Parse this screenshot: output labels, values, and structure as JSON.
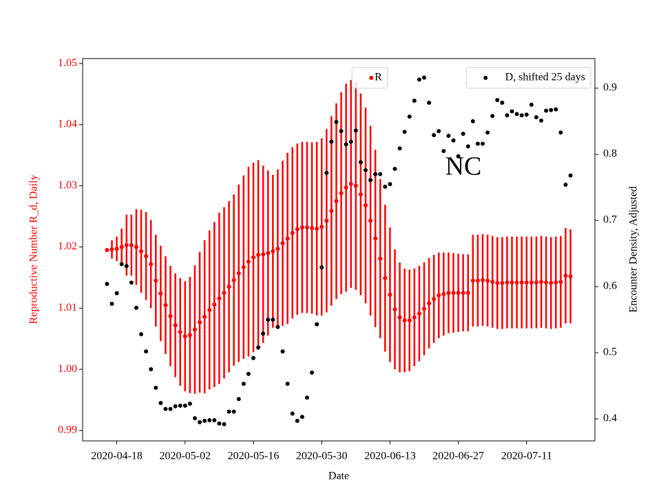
{
  "chart_data": {
    "type": "scatter",
    "xlabel": "Date",
    "ylabel": "Reproductive Number R_d, Daily",
    "y2label": "Encounter Density, Adjusted",
    "annotation": "NC",
    "xlim": [
      "2020-04-11",
      "2020-07-25"
    ],
    "xticks": [
      "2020-04-18",
      "2020-05-02",
      "2020-05-16",
      "2020-05-30",
      "2020-06-13",
      "2020-06-27",
      "2020-07-11"
    ],
    "ylim": [
      0.9883,
      1.0508
    ],
    "yticks": [
      0.99,
      {
        "value": 1,
        "label": "1.00"
      },
      1.01,
      1.02,
      1.03,
      1.04,
      1.05
    ],
    "y2lim": [
      0.3667,
      0.9448
    ],
    "y2ticks": [
      0.4,
      0.5,
      0.6,
      0.7,
      0.8,
      0.9
    ],
    "ylabel_color": "#ff0000",
    "x": [
      "2020-04-16",
      "2020-04-17",
      "2020-04-18",
      "2020-04-19",
      "2020-04-20",
      "2020-04-21",
      "2020-04-22",
      "2020-04-23",
      "2020-04-24",
      "2020-04-25",
      "2020-04-26",
      "2020-04-27",
      "2020-04-28",
      "2020-04-29",
      "2020-04-30",
      "2020-05-01",
      "2020-05-02",
      "2020-05-03",
      "2020-05-04",
      "2020-05-05",
      "2020-05-06",
      "2020-05-07",
      "2020-05-08",
      "2020-05-09",
      "2020-05-10",
      "2020-05-11",
      "2020-05-12",
      "2020-05-13",
      "2020-05-14",
      "2020-05-15",
      "2020-05-16",
      "2020-05-17",
      "2020-05-18",
      "2020-05-19",
      "2020-05-20",
      "2020-05-21",
      "2020-05-22",
      "2020-05-23",
      "2020-05-24",
      "2020-05-25",
      "2020-05-26",
      "2020-05-27",
      "2020-05-28",
      "2020-05-29",
      "2020-05-30",
      "2020-05-31",
      "2020-06-01",
      "2020-06-02",
      "2020-06-03",
      "2020-06-04",
      "2020-06-05",
      "2020-06-06",
      "2020-06-07",
      "2020-06-08",
      "2020-06-09",
      "2020-06-10",
      "2020-06-11",
      "2020-06-12",
      "2020-06-13",
      "2020-06-14",
      "2020-06-15",
      "2020-06-16",
      "2020-06-17",
      "2020-06-18",
      "2020-06-19",
      "2020-06-20",
      "2020-06-21",
      "2020-06-22",
      "2020-06-23",
      "2020-06-24",
      "2020-06-25",
      "2020-06-26",
      "2020-06-27",
      "2020-06-28",
      "2020-06-29",
      "2020-06-30",
      "2020-07-01",
      "2020-07-02",
      "2020-07-03",
      "2020-07-04",
      "2020-07-05",
      "2020-07-06",
      "2020-07-07",
      "2020-07-08",
      "2020-07-09",
      "2020-07-10",
      "2020-07-11",
      "2020-07-12",
      "2020-07-13",
      "2020-07-14",
      "2020-07-15",
      "2020-07-16",
      "2020-07-17",
      "2020-07-18",
      "2020-07-19",
      "2020-07-20"
    ],
    "series": [
      {
        "name": "R",
        "color": "#ff0000",
        "axis": "y",
        "legend": "upper center",
        "values": [
          1.0195,
          1.0196,
          1.0197,
          1.02,
          1.0203,
          1.0203,
          1.02,
          1.0193,
          1.0185,
          1.0172,
          1.0145,
          1.0124,
          1.0105,
          1.0087,
          1.0072,
          1.0061,
          1.0054,
          1.0056,
          1.0065,
          1.0077,
          1.0086,
          1.0097,
          1.0106,
          1.0116,
          1.0125,
          1.0135,
          1.0146,
          1.0157,
          1.0167,
          1.0176,
          1.0183,
          1.0187,
          1.0188,
          1.019,
          1.0193,
          1.0197,
          1.0206,
          1.0214,
          1.0223,
          1.0229,
          1.0232,
          1.0232,
          1.0231,
          1.023,
          1.0233,
          1.0243,
          1.0259,
          1.0275,
          1.0288,
          1.0297,
          1.0303,
          1.03,
          1.0286,
          1.0268,
          1.0243,
          1.0214,
          1.0181,
          1.0149,
          1.0122,
          1.0098,
          1.0085,
          1.008,
          1.008,
          1.0085,
          1.0091,
          1.0099,
          1.0108,
          1.0115,
          1.0121,
          1.0123,
          1.0125,
          1.0125,
          1.0125,
          1.0125,
          1.0125,
          1.0145,
          1.0145,
          1.0146,
          1.0145,
          1.0143,
          1.0141,
          1.0141,
          1.0142,
          1.0142,
          1.0142,
          1.0142,
          1.0142,
          1.0142,
          1.0142,
          1.0143,
          1.0142,
          1.0141,
          1.0142,
          1.0143,
          1.0153,
          1.0152
        ],
        "errors": [
          0.0003,
          0.0015,
          0.002,
          0.003,
          0.005,
          0.005,
          0.0062,
          0.0068,
          0.0072,
          0.0072,
          0.0075,
          0.0078,
          0.008,
          0.0082,
          0.0085,
          0.0088,
          0.009,
          0.0095,
          0.0105,
          0.0115,
          0.0125,
          0.013,
          0.0135,
          0.014,
          0.014,
          0.014,
          0.014,
          0.0145,
          0.015,
          0.0155,
          0.0155,
          0.0155,
          0.0145,
          0.0135,
          0.0125,
          0.013,
          0.0135,
          0.014,
          0.014,
          0.014,
          0.014,
          0.014,
          0.014,
          0.0142,
          0.0145,
          0.015,
          0.0155,
          0.016,
          0.0165,
          0.017,
          0.017,
          0.017,
          0.0165,
          0.016,
          0.0155,
          0.0145,
          0.013,
          0.012,
          0.011,
          0.0098,
          0.009,
          0.0085,
          0.0083,
          0.008,
          0.0078,
          0.0076,
          0.0074,
          0.0072,
          0.007,
          0.0068,
          0.0066,
          0.0065,
          0.0064,
          0.0063,
          0.0063,
          0.0075,
          0.0075,
          0.0075,
          0.0075,
          0.0075,
          0.0075,
          0.0075,
          0.0075,
          0.0075,
          0.0075,
          0.0075,
          0.0075,
          0.0075,
          0.0075,
          0.0075,
          0.0075,
          0.0075,
          0.0075,
          0.0075,
          0.0078,
          0.0077
        ]
      },
      {
        "name": "D, shifted 25 days",
        "color": "#000000",
        "axis": "y2",
        "legend": "upper right",
        "values": [
          0.604,
          0.574,
          0.59,
          0.634,
          0.631,
          0.606,
          0.568,
          0.528,
          0.502,
          0.475,
          0.447,
          0.424,
          0.415,
          0.415,
          0.419,
          0.42,
          0.42,
          0.423,
          0.401,
          0.395,
          0.397,
          0.398,
          0.398,
          0.393,
          0.392,
          0.411,
          0.411,
          0.43,
          0.453,
          0.468,
          0.492,
          0.508,
          0.529,
          0.55,
          0.55,
          0.539,
          0.502,
          0.453,
          0.408,
          0.397,
          0.403,
          0.432,
          0.47,
          0.543,
          0.629,
          0.772,
          0.819,
          0.849,
          0.835,
          0.815,
          0.819,
          0.836,
          0.788,
          0.776,
          0.761,
          0.77,
          0.77,
          0.751,
          0.755,
          0.778,
          0.809,
          0.834,
          0.857,
          0.881,
          0.913,
          0.916,
          0.878,
          0.829,
          0.835,
          0.805,
          0.828,
          0.821,
          0.797,
          0.831,
          0.812,
          0.85,
          0.816,
          0.816,
          0.833,
          0.858,
          0.882,
          0.878,
          0.859,
          0.865,
          0.861,
          0.859,
          0.86,
          0.875,
          0.856,
          0.851,
          0.866,
          0.867,
          0.868,
          0.833,
          0.754,
          0.768
        ]
      }
    ]
  }
}
